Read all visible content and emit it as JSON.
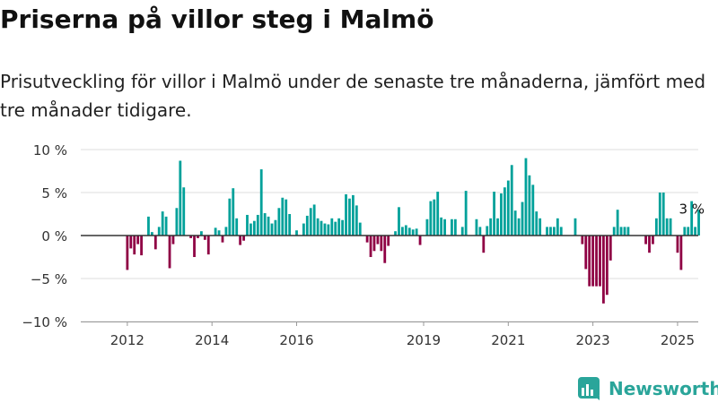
{
  "title": "Priserna på villor steg i Malmö",
  "subtitle": "Prisutveckling för villor i Malmö under de senaste tre månaderna, jämfört med tre månader tidigare.",
  "brand": {
    "name": "Newsworthy",
    "icon": "newsworthy-chart-logo-icon",
    "color": "#2aa59a"
  },
  "chart_data": {
    "type": "bar",
    "ylim": [
      -10,
      10
    ],
    "y_ticks": [
      {
        "value": 10,
        "label": "10 %"
      },
      {
        "value": 5,
        "label": "5 %"
      },
      {
        "value": 0,
        "label": "0 %"
      },
      {
        "value": -5,
        "label": "−5 %"
      },
      {
        "value": -10,
        "label": "−10 %"
      }
    ],
    "x_ticks": [
      {
        "index": 9,
        "label": "2012"
      },
      {
        "index": 33,
        "label": "2014"
      },
      {
        "index": 57,
        "label": "2016"
      },
      {
        "index": 93,
        "label": "2019"
      },
      {
        "index": 117,
        "label": "2021"
      },
      {
        "index": 141,
        "label": "2023"
      },
      {
        "index": 165,
        "label": "2025"
      }
    ],
    "grid": true,
    "colors": {
      "positive": "#00a19a",
      "negative": "#8f0044",
      "zero_line": "#333333"
    },
    "annotation": {
      "index": 168,
      "label": "3 %"
    },
    "values": [
      0,
      0,
      0,
      0,
      0,
      0,
      0,
      0,
      0,
      -4.0,
      -1.5,
      -2.2,
      -1.0,
      -2.3,
      0,
      2.2,
      0.4,
      -1.6,
      1.0,
      2.8,
      2.2,
      -3.8,
      -1.0,
      3.2,
      8.7,
      5.6,
      0,
      -0.3,
      -2.5,
      -0.3,
      0.5,
      -0.5,
      -2.2,
      0,
      0.9,
      0.6,
      -0.8,
      1.0,
      4.3,
      5.5,
      2.0,
      -1.1,
      -0.6,
      2.4,
      1.4,
      1.7,
      2.4,
      7.7,
      2.6,
      2.2,
      1.4,
      1.8,
      3.2,
      4.4,
      4.2,
      2.5,
      0,
      0.6,
      0,
      1.4,
      2.3,
      3.2,
      3.6,
      2.0,
      1.7,
      1.4,
      1.3,
      2.0,
      1.6,
      2.0,
      1.8,
      4.8,
      4.3,
      4.7,
      3.5,
      1.5,
      0,
      -0.8,
      -2.5,
      -1.8,
      -1.0,
      -1.8,
      -3.2,
      -1.2,
      0,
      0.5,
      3.3,
      1.0,
      1.2,
      0.9,
      0.7,
      0.8,
      -1.1,
      0,
      1.9,
      4.0,
      4.2,
      5.1,
      2.1,
      1.9,
      0,
      1.9,
      1.9,
      0,
      1.0,
      5.2,
      0,
      0,
      1.9,
      1.0,
      -2.0,
      1.1,
      2.0,
      5.1,
      2.0,
      4.9,
      5.6,
      6.4,
      8.2,
      2.9,
      2.0,
      3.9,
      9.0,
      7.0,
      5.9,
      2.8,
      2.0,
      0,
      1.0,
      1.0,
      1.0,
      2.0,
      1.0,
      0,
      0,
      0,
      2.0,
      0,
      -1.0,
      -3.9,
      -5.9,
      -5.9,
      -5.9,
      -5.9,
      -7.9,
      -6.9,
      -2.9,
      1.0,
      3.0,
      1.0,
      1.0,
      1.0,
      0,
      0,
      0,
      0,
      -1.0,
      -2.0,
      -1.0,
      2.0,
      5.0,
      5.0,
      2.0,
      2.0,
      0,
      -2.0,
      -4.0,
      1.0,
      1.0,
      4.0,
      1.0,
      3.0
    ]
  }
}
